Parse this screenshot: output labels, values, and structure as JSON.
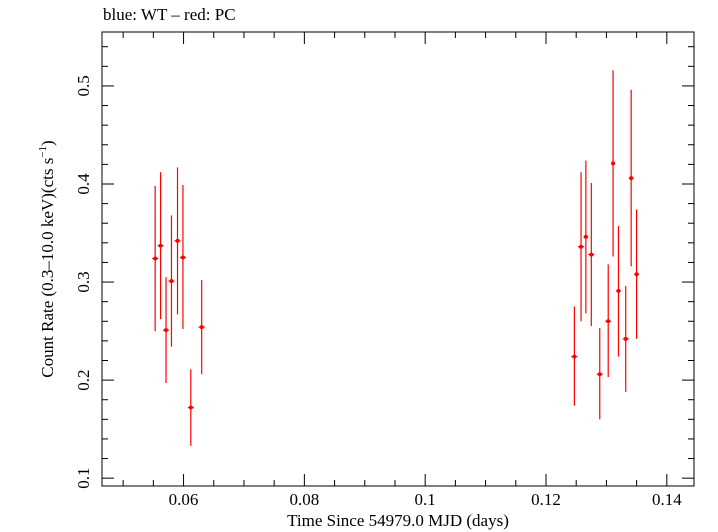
{
  "chart_data": {
    "type": "scatter",
    "title": "blue: WT – red: PC",
    "xlabel": "Time Since 54979.0 MJD (days)",
    "ylabel": "Count Rate (0.3–10.0 keV)(cts s",
    "ylabel_sup": "−1",
    "ylabel_close": ")",
    "xlim": [
      0.0465,
      0.1445
    ],
    "ylim": [
      0.092,
      0.555
    ],
    "x_ticks": [
      0.06,
      0.08,
      0.1,
      0.12,
      0.14
    ],
    "x_tick_labels": [
      "0.06",
      "0.08",
      "0.1",
      "0.12",
      "0.14"
    ],
    "y_ticks": [
      0.1,
      0.2,
      0.3,
      0.4,
      0.5
    ],
    "y_tick_labels": [
      "0.1",
      "0.2",
      "0.3",
      "0.4",
      "0.5"
    ],
    "grid": false,
    "series": [
      {
        "color": "#ff0000",
        "points": [
          {
            "x": 0.0553,
            "y": 0.324,
            "xerr": 0.0005,
            "ylo": 0.25,
            "yhi": 0.398
          },
          {
            "x": 0.0562,
            "y": 0.337,
            "xerr": 0.0005,
            "ylo": 0.262,
            "yhi": 0.412
          },
          {
            "x": 0.0571,
            "y": 0.251,
            "xerr": 0.0005,
            "ylo": 0.197,
            "yhi": 0.305
          },
          {
            "x": 0.058,
            "y": 0.301,
            "xerr": 0.0005,
            "ylo": 0.234,
            "yhi": 0.368
          },
          {
            "x": 0.059,
            "y": 0.342,
            "xerr": 0.0005,
            "ylo": 0.267,
            "yhi": 0.417
          },
          {
            "x": 0.0599,
            "y": 0.325,
            "xerr": 0.0005,
            "ylo": 0.252,
            "yhi": 0.399
          },
          {
            "x": 0.0612,
            "y": 0.172,
            "xerr": 0.0005,
            "ylo": 0.133,
            "yhi": 0.211
          },
          {
            "x": 0.063,
            "y": 0.254,
            "xerr": 0.0005,
            "ylo": 0.206,
            "yhi": 0.302
          },
          {
            "x": 0.1247,
            "y": 0.224,
            "xerr": 0.0005,
            "ylo": 0.174,
            "yhi": 0.275
          },
          {
            "x": 0.1258,
            "y": 0.336,
            "xerr": 0.0005,
            "ylo": 0.26,
            "yhi": 0.412
          },
          {
            "x": 0.1266,
            "y": 0.346,
            "xerr": 0.0004,
            "ylo": 0.268,
            "yhi": 0.424
          },
          {
            "x": 0.1275,
            "y": 0.328,
            "xerr": 0.0005,
            "ylo": 0.255,
            "yhi": 0.401
          },
          {
            "x": 0.1289,
            "y": 0.206,
            "xerr": 0.0005,
            "ylo": 0.16,
            "yhi": 0.253
          },
          {
            "x": 0.1303,
            "y": 0.26,
            "xerr": 0.0005,
            "ylo": 0.203,
            "yhi": 0.318
          },
          {
            "x": 0.1311,
            "y": 0.421,
            "xerr": 0.0003,
            "ylo": 0.326,
            "yhi": 0.516
          },
          {
            "x": 0.132,
            "y": 0.291,
            "xerr": 0.0004,
            "ylo": 0.224,
            "yhi": 0.357
          },
          {
            "x": 0.1332,
            "y": 0.242,
            "xerr": 0.0005,
            "ylo": 0.188,
            "yhi": 0.296
          },
          {
            "x": 0.1341,
            "y": 0.406,
            "xerr": 0.0004,
            "ylo": 0.316,
            "yhi": 0.496
          },
          {
            "x": 0.135,
            "y": 0.308,
            "xerr": 0.0004,
            "ylo": 0.242,
            "yhi": 0.374
          }
        ]
      }
    ]
  }
}
